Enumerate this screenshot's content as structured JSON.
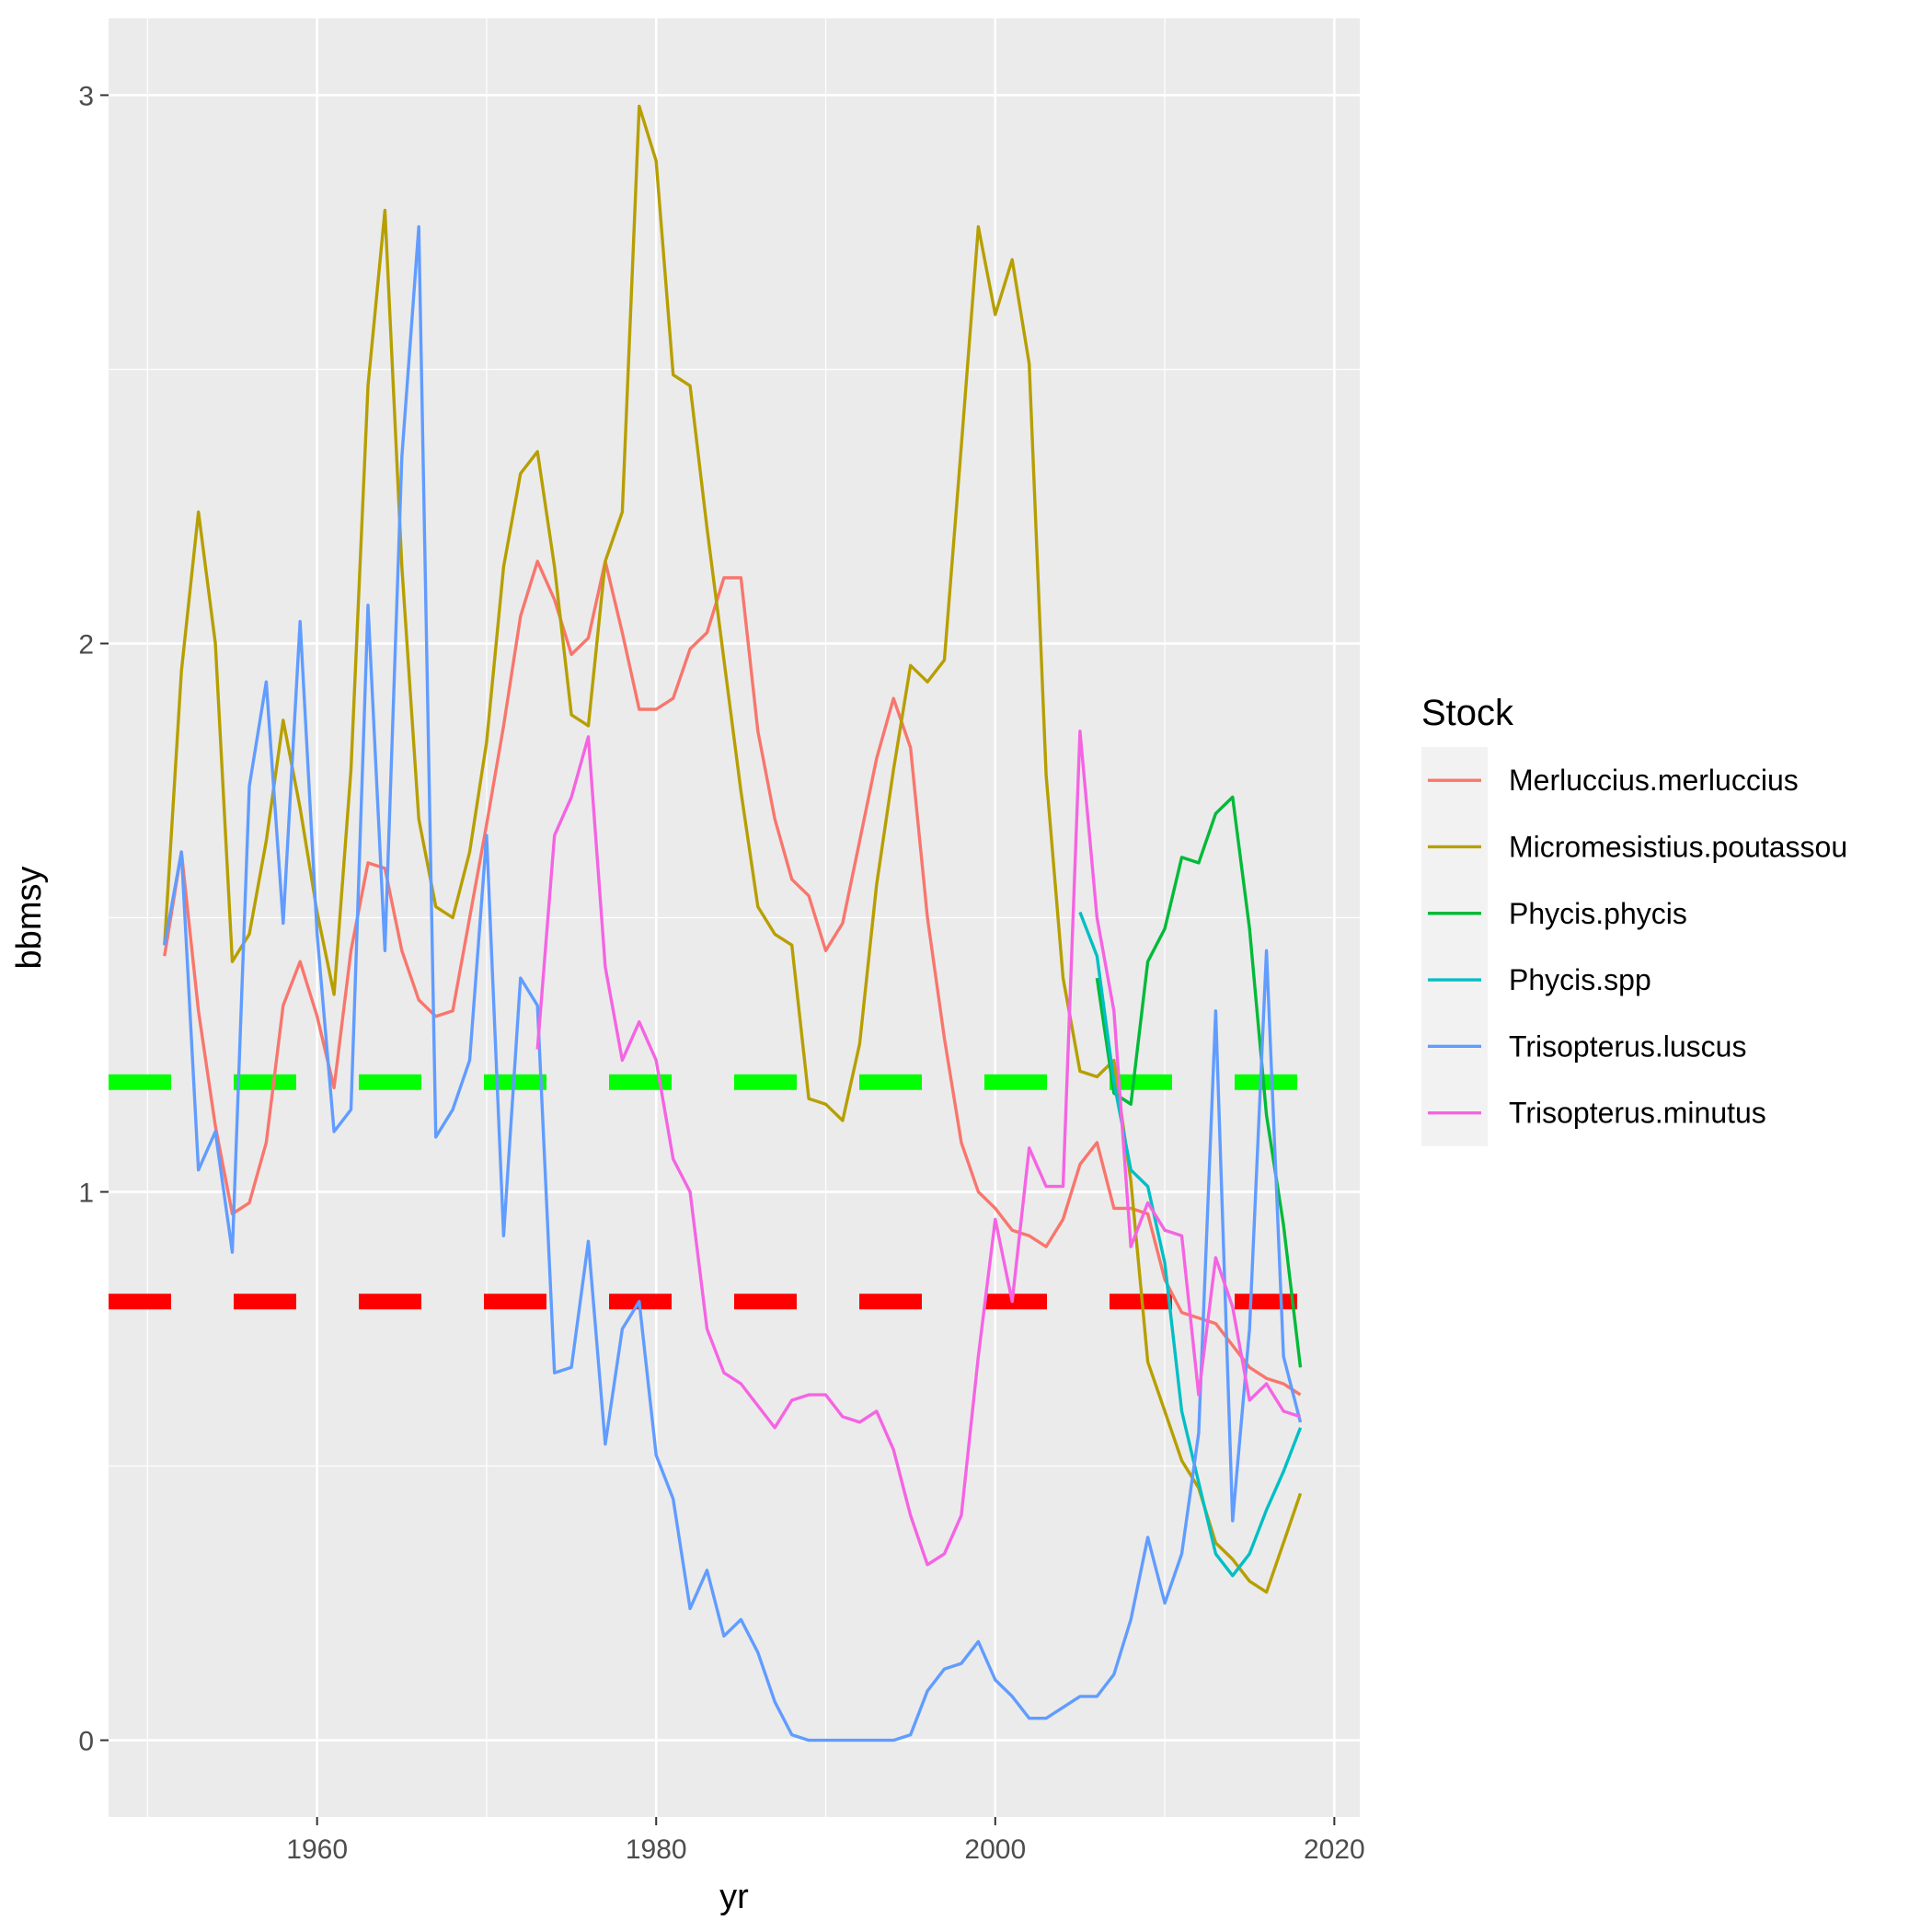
{
  "chart_data": {
    "type": "line",
    "xlabel": "yr",
    "ylabel": "bbmsy",
    "xlim": [
      1947.7,
      2021.5
    ],
    "ylim": [
      -0.14,
      3.14
    ],
    "x_ticks": [
      1960,
      1980,
      2000,
      2020
    ],
    "y_ticks": [
      0,
      1,
      2,
      3
    ],
    "grid": true,
    "panel_background": "#ebebeb",
    "legend": {
      "title": "Stock",
      "position": "right"
    },
    "series": [
      {
        "name": "Merluccius.merluccius",
        "color": "#F8766D",
        "x": [
          1951,
          1952,
          1953,
          1954,
          1955,
          1956,
          1957,
          1958,
          1959,
          1960,
          1961,
          1962,
          1963,
          1964,
          1965,
          1966,
          1967,
          1968,
          1969,
          1970,
          1971,
          1972,
          1973,
          1974,
          1975,
          1976,
          1977,
          1978,
          1979,
          1980,
          1981,
          1982,
          1983,
          1984,
          1985,
          1986,
          1987,
          1988,
          1989,
          1990,
          1991,
          1992,
          1993,
          1994,
          1995,
          1996,
          1997,
          1998,
          1999,
          2000,
          2001,
          2002,
          2003,
          2004,
          2005,
          2006,
          2007,
          2008,
          2009,
          2010,
          2011,
          2012,
          2013,
          2014,
          2015,
          2016,
          2017,
          2018
        ],
        "values": [
          1.43,
          1.62,
          1.33,
          1.12,
          0.96,
          0.98,
          1.09,
          1.34,
          1.42,
          1.32,
          1.19,
          1.44,
          1.6,
          1.59,
          1.44,
          1.35,
          1.32,
          1.33,
          1.5,
          1.67,
          1.85,
          2.05,
          2.15,
          2.08,
          1.98,
          2.01,
          2.15,
          2.02,
          1.88,
          1.88,
          1.9,
          1.99,
          2.02,
          2.12,
          2.12,
          1.84,
          1.68,
          1.57,
          1.54,
          1.44,
          1.49,
          1.64,
          1.79,
          1.9,
          1.81,
          1.5,
          1.28,
          1.09,
          1.0,
          0.97,
          0.93,
          0.92,
          0.9,
          0.95,
          1.05,
          1.09,
          0.97,
          0.97,
          0.96,
          0.84,
          0.78,
          0.77,
          0.76,
          0.72,
          0.68,
          0.66,
          0.65,
          0.63
        ]
      },
      {
        "name": "Micromesistius.poutassou",
        "color": "#B79F00",
        "x": [
          1951,
          1952,
          1953,
          1954,
          1955,
          1956,
          1957,
          1958,
          1959,
          1960,
          1961,
          1962,
          1963,
          1964,
          1965,
          1966,
          1967,
          1968,
          1969,
          1970,
          1971,
          1972,
          1973,
          1974,
          1975,
          1976,
          1977,
          1978,
          1979,
          1980,
          1981,
          1982,
          1983,
          1984,
          1985,
          1986,
          1987,
          1988,
          1989,
          1990,
          1991,
          1992,
          1993,
          1994,
          1995,
          1996,
          1997,
          1998,
          1999,
          2000,
          2001,
          2002,
          2003,
          2004,
          2005,
          2006,
          2007,
          2008,
          2009,
          2010,
          2011,
          2012,
          2013,
          2014,
          2015,
          2016,
          2017,
          2018
        ],
        "values": [
          1.45,
          1.95,
          2.24,
          2.0,
          1.42,
          1.47,
          1.64,
          1.86,
          1.7,
          1.51,
          1.36,
          1.77,
          2.47,
          2.79,
          2.14,
          1.68,
          1.52,
          1.5,
          1.62,
          1.82,
          2.14,
          2.31,
          2.35,
          2.14,
          1.87,
          1.85,
          2.15,
          2.24,
          2.98,
          2.88,
          2.49,
          2.47,
          2.21,
          1.97,
          1.73,
          1.52,
          1.47,
          1.45,
          1.17,
          1.16,
          1.13,
          1.27,
          1.56,
          1.77,
          1.96,
          1.93,
          1.97,
          2.36,
          2.76,
          2.6,
          2.7,
          2.51,
          1.76,
          1.39,
          1.22,
          1.21,
          1.24,
          1.02,
          0.69,
          0.6,
          0.51,
          0.46,
          0.36,
          0.33,
          0.29,
          0.27,
          0.36,
          0.45
        ]
      },
      {
        "name": "Phycis.phycis",
        "color": "#00BA38",
        "x": [
          2006,
          2007,
          2008,
          2009,
          2010,
          2011,
          2012,
          2013,
          2014,
          2015,
          2016,
          2017,
          2018
        ],
        "values": [
          1.39,
          1.18,
          1.16,
          1.42,
          1.48,
          1.61,
          1.6,
          1.69,
          1.72,
          1.48,
          1.14,
          0.94,
          0.68
        ]
      },
      {
        "name": "Phycis.spp",
        "color": "#00BFC4",
        "x": [
          2005,
          2006,
          2007,
          2008,
          2009,
          2010,
          2011,
          2012,
          2013,
          2014,
          2015,
          2016,
          2017,
          2018
        ],
        "values": [
          1.51,
          1.43,
          1.2,
          1.04,
          1.01,
          0.87,
          0.6,
          0.47,
          0.34,
          0.3,
          0.34,
          0.42,
          0.49,
          0.57
        ]
      },
      {
        "name": "Trisopterus.luscus",
        "color": "#619CFF",
        "x": [
          1951,
          1952,
          1953,
          1954,
          1955,
          1956,
          1957,
          1958,
          1959,
          1960,
          1961,
          1962,
          1963,
          1964,
          1965,
          1966,
          1967,
          1968,
          1969,
          1970,
          1971,
          1972,
          1973,
          1974,
          1975,
          1976,
          1977,
          1978,
          1979,
          1980,
          1981,
          1982,
          1983,
          1984,
          1985,
          1986,
          1987,
          1988,
          1989,
          1990,
          1991,
          1992,
          1993,
          1994,
          1995,
          1996,
          1997,
          1998,
          1999,
          2000,
          2001,
          2002,
          2003,
          2004,
          2005,
          2006,
          2007,
          2008,
          2009,
          2010,
          2011,
          2012,
          2013,
          2014,
          2015,
          2016,
          2017,
          2018
        ],
        "values": [
          1.45,
          1.62,
          1.04,
          1.11,
          0.89,
          1.74,
          1.93,
          1.49,
          2.04,
          1.47,
          1.11,
          1.15,
          2.07,
          1.44,
          2.34,
          2.76,
          1.1,
          1.15,
          1.24,
          1.65,
          0.92,
          1.39,
          1.34,
          0.67,
          0.68,
          0.91,
          0.54,
          0.75,
          0.8,
          0.52,
          0.44,
          0.24,
          0.31,
          0.19,
          0.22,
          0.16,
          0.07,
          0.01,
          0.0,
          0.0,
          0.0,
          0.0,
          0.0,
          0.0,
          0.01,
          0.09,
          0.13,
          0.14,
          0.18,
          0.11,
          0.08,
          0.04,
          0.04,
          0.06,
          0.08,
          0.08,
          0.12,
          0.22,
          0.37,
          0.25,
          0.34,
          0.56,
          1.33,
          0.4,
          0.75,
          1.44,
          0.7,
          0.58
        ]
      },
      {
        "name": "Trisopterus.minutus",
        "color": "#F564E3",
        "x": [
          1973,
          1974,
          1975,
          1976,
          1977,
          1978,
          1979,
          1980,
          1981,
          1982,
          1983,
          1984,
          1985,
          1986,
          1987,
          1988,
          1989,
          1990,
          1991,
          1992,
          1993,
          1994,
          1995,
          1996,
          1997,
          1998,
          1999,
          2000,
          2001,
          2002,
          2003,
          2004,
          2005,
          2006,
          2007,
          2008,
          2009,
          2010,
          2011,
          2012,
          2013,
          2014,
          2015,
          2016,
          2017,
          2018
        ],
        "values": [
          1.26,
          1.65,
          1.72,
          1.83,
          1.41,
          1.24,
          1.31,
          1.24,
          1.06,
          1.0,
          0.75,
          0.67,
          0.65,
          0.61,
          0.57,
          0.62,
          0.63,
          0.63,
          0.59,
          0.58,
          0.6,
          0.53,
          0.41,
          0.32,
          0.34,
          0.41,
          0.7,
          0.95,
          0.8,
          1.08,
          1.01,
          1.01,
          1.84,
          1.5,
          1.33,
          0.9,
          0.98,
          0.93,
          0.92,
          0.63,
          0.88,
          0.79,
          0.62,
          0.65,
          0.6,
          0.59
        ]
      }
    ],
    "reference_lines": [
      {
        "y": 1.2,
        "color": "#00ff00",
        "style": "dashed"
      },
      {
        "y": 0.8,
        "color": "#ff0000",
        "style": "dashed"
      }
    ]
  }
}
